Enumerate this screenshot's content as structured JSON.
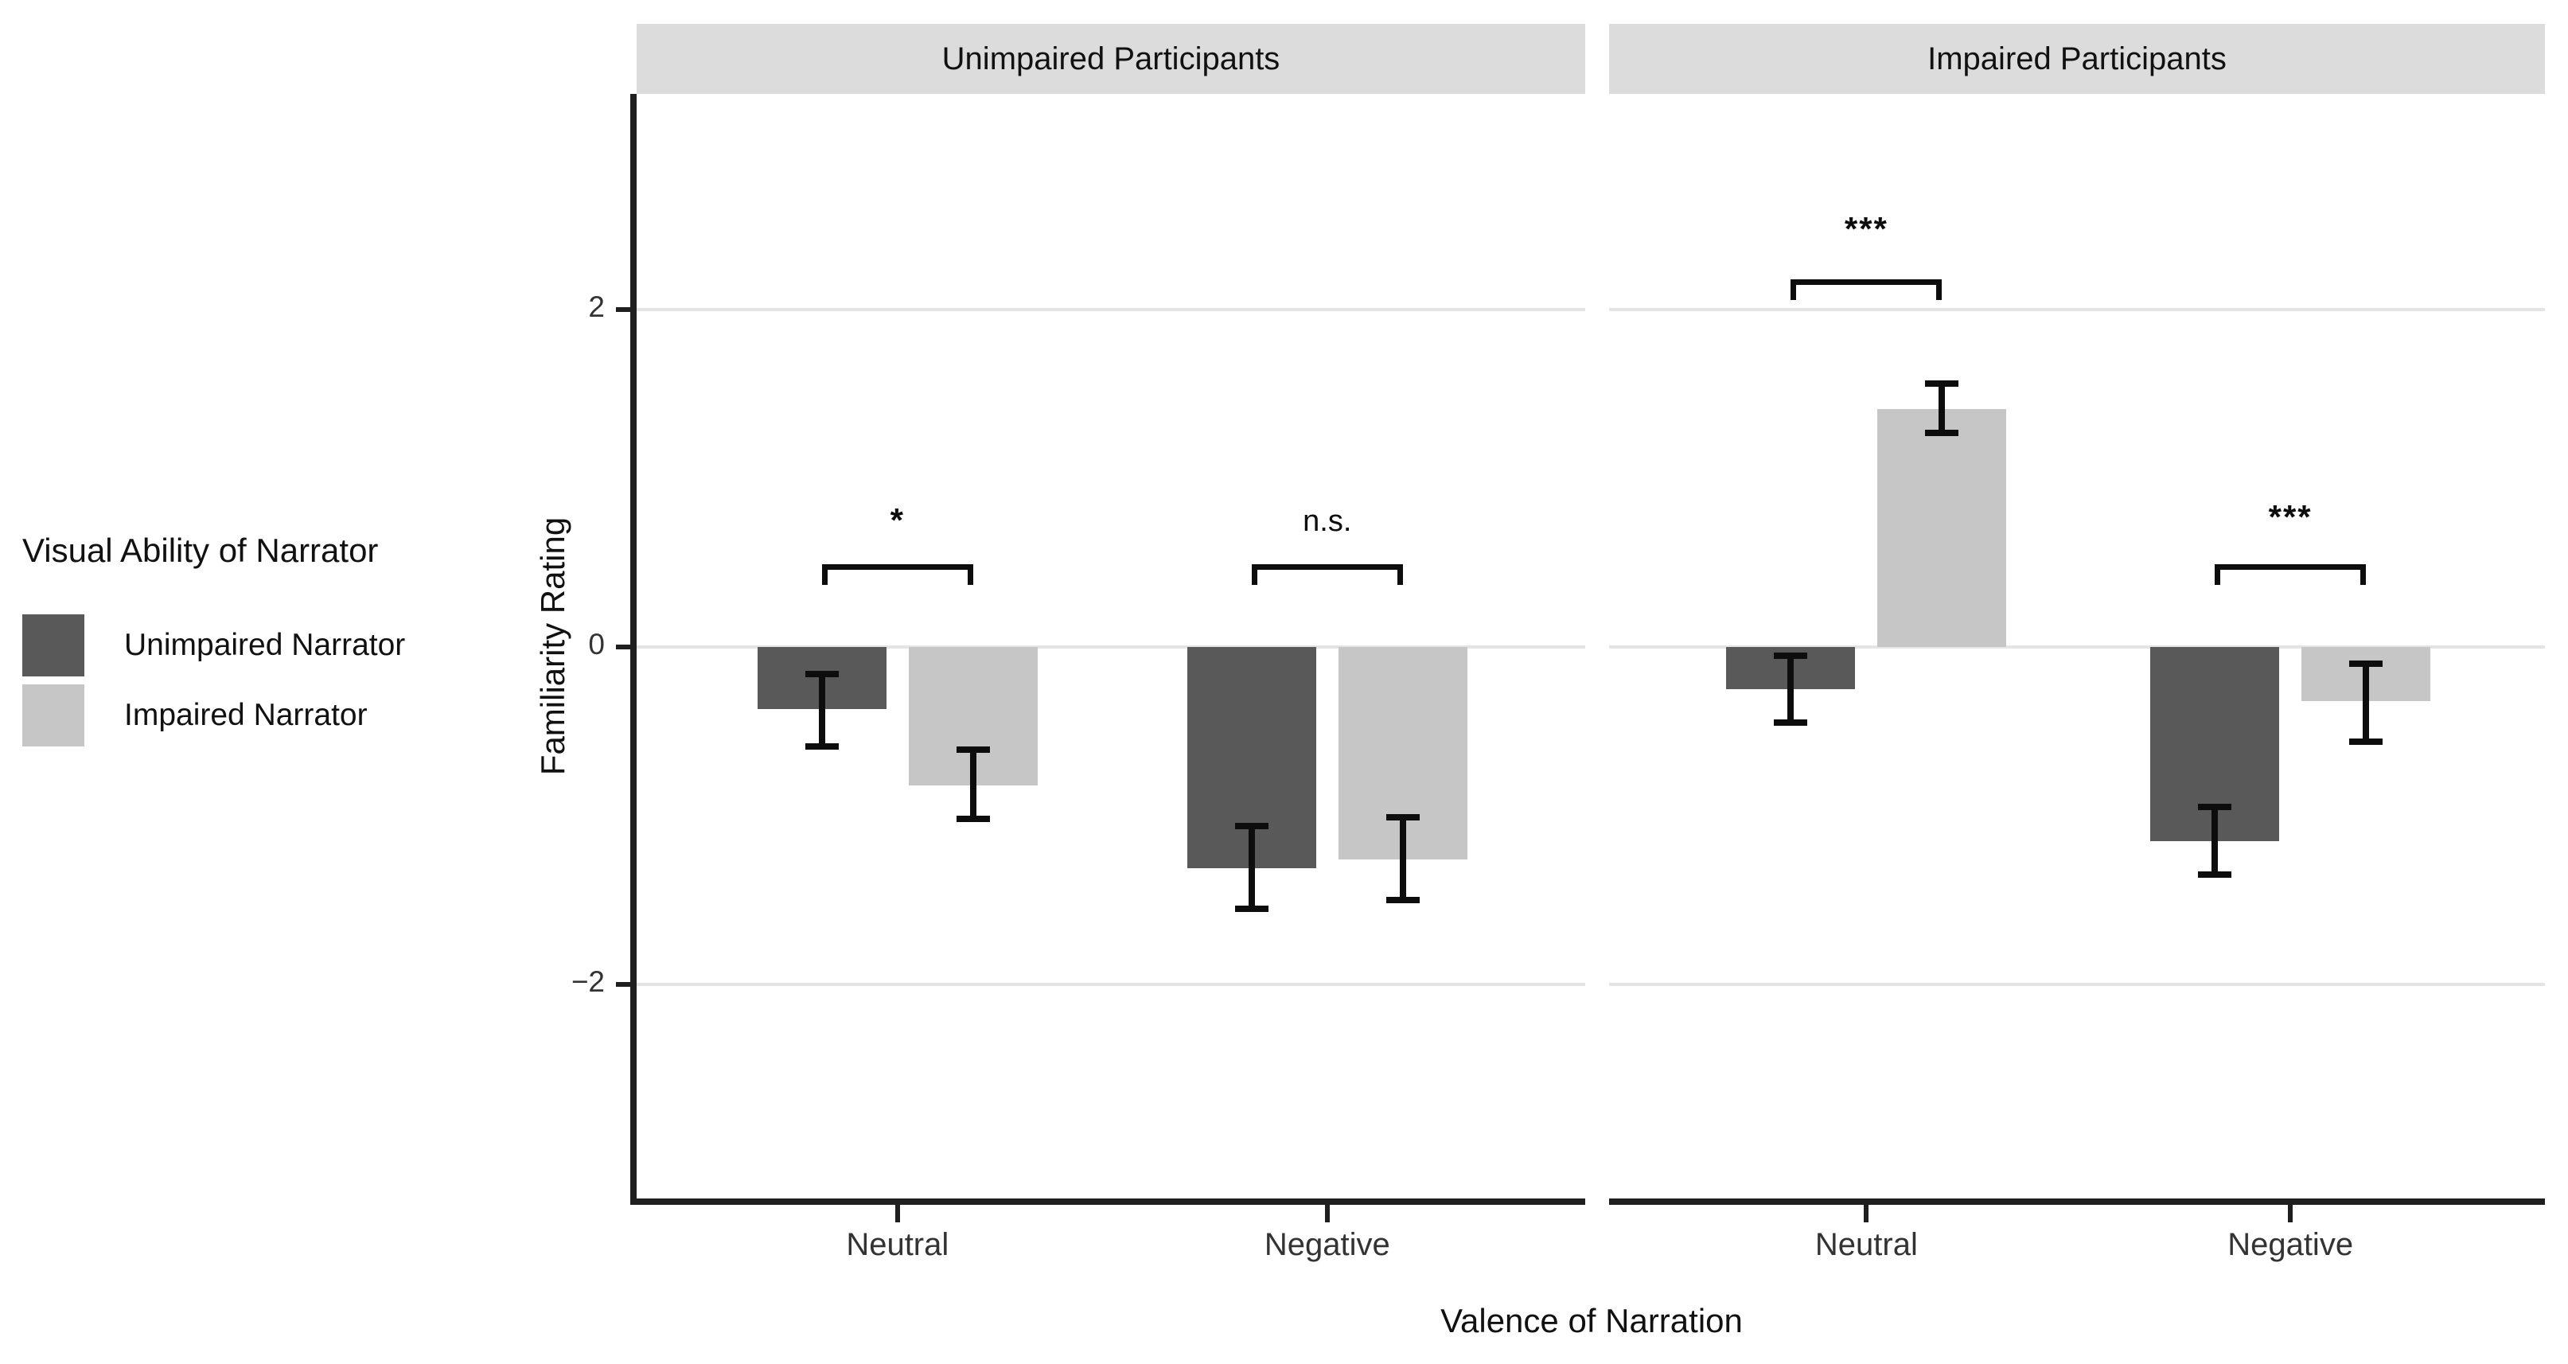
{
  "legend": {
    "title": "Visual Ability of Narrator",
    "items": [
      {
        "label": "Unimpaired Narrator",
        "color": "#595959"
      },
      {
        "label": "Impaired Narrator",
        "color": "#c6c6c6"
      }
    ]
  },
  "chart_data": {
    "type": "bar",
    "title": "",
    "xlabel": "Valence of Narration",
    "ylabel": "Familiarity Rating",
    "yticks": [
      2,
      0,
      -2
    ],
    "ylim": [
      -3.27,
      3.28
    ],
    "grid": "horizontal gridlines at y = 2, 0, -2 only",
    "legend_position": "left",
    "bar_style": "dodged, error bars = ~95% CI",
    "facets": [
      {
        "label": "Unimpaired Participants",
        "categories": [
          "Neutral",
          "Negative"
        ],
        "series": [
          {
            "name": "Unimpaired Narrator",
            "color": "#595959",
            "values": [
              -0.37,
              -1.31
            ],
            "error_low": [
              -0.59,
              -1.55
            ],
            "error_high": [
              -0.16,
              -1.06
            ]
          },
          {
            "name": "Impaired Narrator",
            "color": "#c6c6c6",
            "values": [
              -0.82,
              -1.26
            ],
            "error_low": [
              -1.02,
              -1.5
            ],
            "error_high": [
              -0.61,
              -1.01
            ]
          }
        ],
        "significance": [
          {
            "category": "Neutral",
            "label": "*",
            "bracket_y": 0.49,
            "label_y": 0.74
          },
          {
            "category": "Negative",
            "label": "n.s.",
            "bracket_y": 0.49,
            "label_y": 0.72
          }
        ]
      },
      {
        "label": "Impaired Participants",
        "categories": [
          "Neutral",
          "Negative"
        ],
        "series": [
          {
            "name": "Unimpaired Narrator",
            "color": "#595959",
            "values": [
              -0.25,
              -1.15
            ],
            "error_low": [
              -0.45,
              -1.35
            ],
            "error_high": [
              -0.05,
              -0.95
            ]
          },
          {
            "name": "Impaired Narrator",
            "color": "#c6c6c6",
            "values": [
              1.41,
              -0.32
            ],
            "error_low": [
              1.27,
              -0.56
            ],
            "error_high": [
              1.56,
              -0.1
            ]
          }
        ],
        "significance": [
          {
            "category": "Neutral",
            "label": "***",
            "bracket_y": 2.18,
            "label_y": 2.47
          },
          {
            "category": "Negative",
            "label": "***",
            "bracket_y": 0.49,
            "label_y": 0.76
          }
        ]
      }
    ]
  }
}
